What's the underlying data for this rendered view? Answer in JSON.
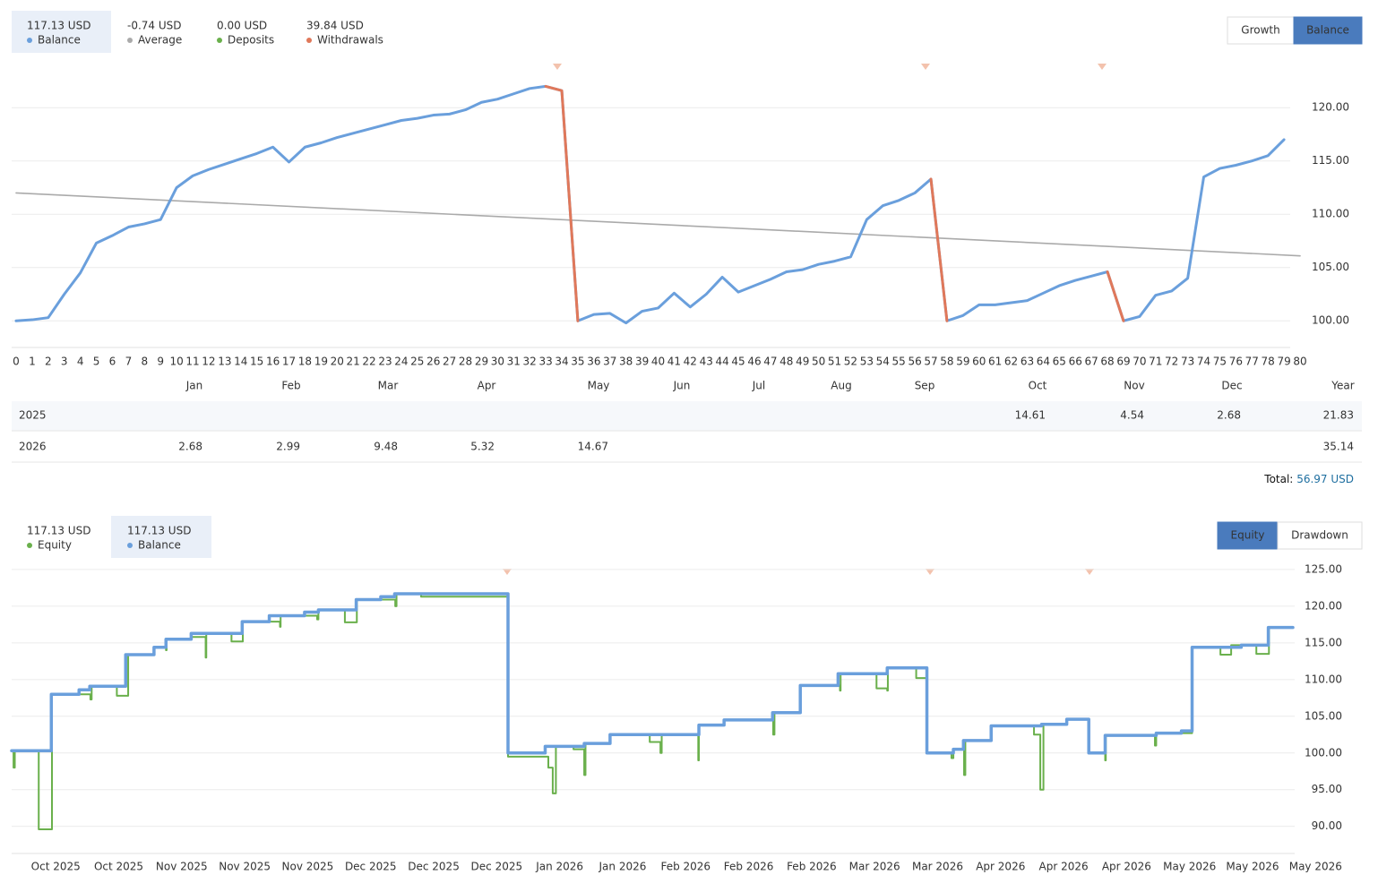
{
  "stats_top": [
    {
      "value": "117.13 USD",
      "label": "Balance",
      "color": "#6a9fdc"
    },
    {
      "value": "-0.74 USD",
      "label": "Average",
      "color": "#aaaaaa"
    },
    {
      "value": "0.00 USD",
      "label": "Deposits",
      "color": "#6ab04c"
    },
    {
      "value": "39.84 USD",
      "label": "Withdrawals",
      "color": "#e0785a"
    }
  ],
  "toggle_top": [
    "Growth",
    "Balance"
  ],
  "chart_data": [
    {
      "type": "line",
      "x": [
        0,
        1,
        2,
        3,
        4,
        5,
        6,
        7,
        8,
        9,
        10,
        11,
        12,
        13,
        14,
        15,
        16,
        17,
        18,
        19,
        20,
        21,
        22,
        23,
        24,
        25,
        26,
        27,
        28,
        29,
        30,
        31,
        32,
        33,
        34,
        35,
        36,
        37,
        38,
        39,
        40,
        41,
        42,
        43,
        44,
        45,
        46,
        47,
        48,
        49,
        50,
        51,
        52,
        53,
        54,
        55,
        56,
        57,
        58,
        59,
        60,
        61,
        62,
        63,
        64,
        65,
        66,
        67,
        68,
        69,
        70,
        71,
        72,
        73,
        74,
        75,
        76,
        77,
        78,
        79
      ],
      "series": [
        {
          "color": "#aaaaaa",
          "x": [
            0,
            80
          ],
          "values": [
            112,
            106.1
          ]
        },
        {
          "color": "#6a9fdc",
          "values": [
            100,
            100.1,
            100.3,
            102.5,
            104.5,
            107.3,
            108,
            108.8,
            109.1,
            109.5,
            112.5,
            113.6,
            114.2,
            114.7,
            115.2,
            115.7,
            116.3,
            114.9,
            116.3,
            116.7,
            117.2,
            117.6,
            118,
            118.4,
            118.8,
            119,
            119.3,
            119.4,
            119.8,
            120.5,
            120.8,
            121.3,
            121.8,
            122,
            121.6,
            100,
            100.6,
            100.7,
            99.8,
            100.9,
            101.2,
            102.6,
            101.3,
            102.5,
            104.1,
            102.7,
            103.3,
            103.9,
            104.6,
            104.8,
            105.3,
            105.6,
            106,
            109.5,
            110.8,
            111.3,
            112,
            113.3,
            100,
            100.5,
            101.5,
            101.5,
            101.7,
            101.9,
            102.6,
            103.3,
            103.8,
            104.2,
            104.6,
            100,
            100.4,
            102.4,
            102.8,
            104,
            113.5,
            114.3,
            114.6,
            115,
            115.5,
            117
          ]
        },
        {
          "color": "#e0785a",
          "values": [
            null,
            null,
            null,
            null,
            null,
            null,
            null,
            null,
            null,
            null,
            null,
            null,
            null,
            null,
            null,
            null,
            null,
            null,
            null,
            null,
            null,
            null,
            null,
            null,
            null,
            null,
            null,
            null,
            null,
            null,
            null,
            null,
            null,
            122,
            121.6,
            100,
            null,
            null,
            null,
            null,
            null,
            null,
            null,
            null,
            null,
            null,
            null,
            null,
            null,
            null,
            null,
            null,
            null,
            null,
            null,
            null,
            null,
            113.3,
            100,
            null,
            null,
            null,
            null,
            null,
            null,
            null,
            null,
            null,
            104.6,
            100,
            null,
            null,
            null,
            null,
            null,
            null,
            null,
            null,
            null,
            null
          ]
        }
      ],
      "xlim": [
        0,
        80
      ],
      "xticks": [
        0,
        1,
        2,
        3,
        4,
        5,
        6,
        7,
        8,
        9,
        10,
        11,
        12,
        13,
        14,
        15,
        16,
        17,
        18,
        19,
        20,
        21,
        22,
        23,
        24,
        25,
        26,
        27,
        28,
        29,
        30,
        31,
        32,
        33,
        34,
        35,
        36,
        37,
        38,
        39,
        40,
        41,
        42,
        43,
        44,
        45,
        46,
        47,
        48,
        49,
        50,
        51,
        52,
        53,
        54,
        55,
        56,
        57,
        58,
        59,
        60,
        61,
        62,
        63,
        64,
        65,
        66,
        67,
        68,
        69,
        70,
        71,
        72,
        73,
        74,
        75,
        76,
        77,
        78,
        79,
        80
      ],
      "ylim": [
        97.5,
        123.8
      ],
      "yticks": [
        {
          "value": 100,
          "label": "100.00"
        },
        {
          "value": 105,
          "label": "105.00"
        },
        {
          "value": 110,
          "label": "110.00"
        },
        {
          "value": 115,
          "label": "115.00"
        },
        {
          "value": 120,
          "label": "120.00"
        }
      ],
      "grid": true
    },
    {
      "type": "step",
      "series": [
        {
          "color": "#6ab04c",
          "x": [
            -0.7,
            -0.67,
            -0.65,
            -0.27,
            -0.07,
            -0.06,
            0.54,
            0.55,
            0.57,
            0.97,
            1.14,
            1.15,
            1.56,
            1.75,
            1.76,
            2.15,
            2.38,
            2.39,
            2.79,
            2.96,
            2.97,
            3.56,
            3.57,
            4.15,
            4.17,
            4.59,
            4.77,
            4.78,
            5.39,
            5.41,
            5.8,
            7.18,
            7.82,
            7.89,
            7.94,
            8.22,
            8.39,
            8.41,
            8.8,
            9.43,
            9.6,
            9.62,
            10.2,
            10.21,
            10.61,
            11.39,
            11.41,
            11.82,
            12.45,
            12.46,
            13.03,
            13.2,
            13.21,
            13.66,
            13.83,
            14.22,
            14.25,
            14.42,
            14.44,
            14.85,
            15.53,
            15.63,
            15.68,
            16.05,
            16.4,
            16.66,
            16.67,
            17.45,
            17.47,
            18.04,
            18.49,
            18.66,
            19.06,
            19.26,
            19.64
          ],
          "values": [
            100.3,
            98,
            100.3,
            89.6,
            89.6,
            108,
            108,
            107.3,
            109.1,
            107.8,
            107.8,
            113.4,
            114.4,
            114,
            115.5,
            115.8,
            113,
            116.3,
            115.2,
            115.2,
            117.9,
            117.2,
            118.7,
            118.2,
            119.5,
            117.8,
            117.8,
            120.9,
            120,
            121.7,
            121.3,
            99.5,
            98,
            94.5,
            100.9,
            100.5,
            97,
            101.3,
            102.5,
            101.5,
            100,
            102.5,
            99,
            103.8,
            104.5,
            102.5,
            105.5,
            109.2,
            108.5,
            110.8,
            108.8,
            108.5,
            111.6,
            110.2,
            100,
            99.3,
            100.5,
            97,
            101.7,
            103.7,
            102.5,
            95,
            104,
            104.6,
            100,
            99,
            102.4,
            101,
            102.7,
            114.4,
            113.4,
            114.7,
            113.5,
            117.1,
            117.1
          ]
        },
        {
          "color": "#6a9fdc",
          "x": [
            -0.7,
            -0.07,
            0.37,
            0.54,
            1.11,
            1.56,
            1.75,
            2.15,
            2.96,
            3.39,
            3.95,
            4.17,
            4.77,
            5.16,
            5.38,
            7.18,
            7.77,
            8.39,
            8.8,
            10.21,
            10.61,
            11.38,
            11.82,
            12.42,
            13.2,
            13.83,
            14.25,
            14.41,
            14.85,
            15.65,
            16.05,
            16.4,
            16.66,
            17.47,
            17.87,
            18.04,
            18.82,
            19.25,
            19.64
          ],
          "values": [
            100.3,
            108,
            108.6,
            109.1,
            113.4,
            114.4,
            115.5,
            116.3,
            117.9,
            118.7,
            119.2,
            119.5,
            120.9,
            121.3,
            121.7,
            100,
            100.9,
            101.3,
            102.5,
            103.8,
            104.5,
            105.5,
            109.2,
            110.8,
            111.6,
            100,
            100.5,
            101.7,
            103.7,
            103.9,
            104.6,
            100,
            102.4,
            102.7,
            103,
            114.4,
            114.7,
            117.1,
            117.1
          ]
        }
      ],
      "xlim": [
        -0.7,
        19.64
      ],
      "xticks": [
        {
          "value": 0,
          "label": "Oct 2025"
        },
        {
          "value": 1,
          "label": "Oct 2025"
        },
        {
          "value": 2,
          "label": "Nov 2025"
        },
        {
          "value": 3,
          "label": "Nov 2025"
        },
        {
          "value": 4,
          "label": "Nov 2025"
        },
        {
          "value": 5,
          "label": "Dec 2025"
        },
        {
          "value": 6,
          "label": "Dec 2025"
        },
        {
          "value": 7,
          "label": "Dec 2025"
        },
        {
          "value": 8,
          "label": "Jan 2026"
        },
        {
          "value": 9,
          "label": "Jan 2026"
        },
        {
          "value": 10,
          "label": "Feb 2026"
        },
        {
          "value": 11,
          "label": "Feb 2026"
        },
        {
          "value": 12,
          "label": "Feb 2026"
        },
        {
          "value": 13,
          "label": "Mar 2026"
        },
        {
          "value": 14,
          "label": "Mar 2026"
        },
        {
          "value": 15,
          "label": "Apr 2026"
        },
        {
          "value": 16,
          "label": "Apr 2026"
        },
        {
          "value": 17,
          "label": "Apr 2026"
        },
        {
          "value": 18,
          "label": "May 2026"
        },
        {
          "value": 19,
          "label": "May 2026"
        },
        {
          "value": 20,
          "label": "May 2026"
        }
      ],
      "ylim": [
        86.3,
        126.7
      ],
      "yticks": [
        {
          "value": 90,
          "label": "90.00"
        },
        {
          "value": 95,
          "label": "95.00"
        },
        {
          "value": 100,
          "label": "100.00"
        },
        {
          "value": 105,
          "label": "105.00"
        },
        {
          "value": 110,
          "label": "110.00"
        },
        {
          "value": 115,
          "label": "115.00"
        },
        {
          "value": 120,
          "label": "120.00"
        },
        {
          "value": 125,
          "label": "125.00"
        }
      ],
      "grid": true
    }
  ],
  "monthly_table": {
    "columns": [
      "Jan",
      "Feb",
      "Mar",
      "Apr",
      "May",
      "Jun",
      "Jul",
      "Aug",
      "Sep",
      "Oct",
      "Nov",
      "Dec",
      "Year"
    ],
    "rows": [
      {
        "year": "2025",
        "cells": [
          null,
          null,
          null,
          null,
          null,
          null,
          null,
          null,
          null,
          14.61,
          4.54,
          2.68,
          21.83
        ]
      },
      {
        "year": "2026",
        "cells": [
          2.68,
          2.99,
          9.48,
          5.32,
          14.67,
          null,
          null,
          null,
          null,
          null,
          null,
          null,
          35.14
        ]
      }
    ]
  },
  "total": {
    "label": "Total:",
    "value": "56.97 USD"
  },
  "stats_bottom": [
    {
      "value": "117.13 USD",
      "label": "Equity",
      "color": "#6ab04c"
    },
    {
      "value": "117.13 USD",
      "label": "Balance",
      "color": "#6a9fdc"
    }
  ],
  "toggle_bottom": [
    "Equity",
    "Drawdown"
  ]
}
